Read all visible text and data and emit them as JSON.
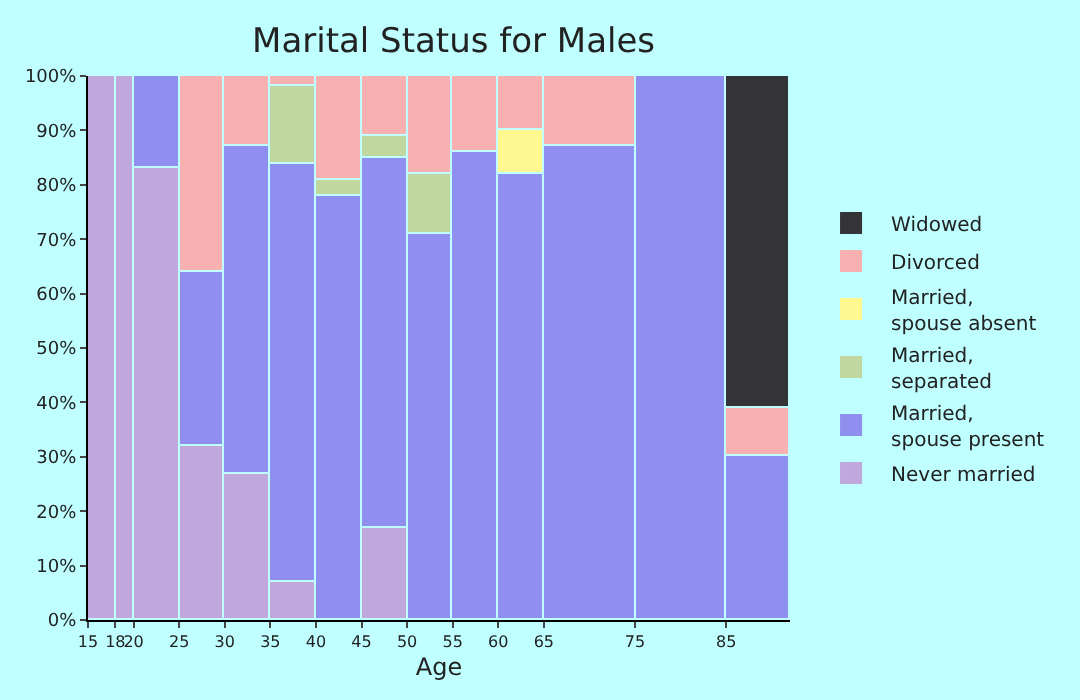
{
  "chart_data": {
    "type": "bar",
    "stacked": true,
    "title": "Marital Status for Males",
    "xlabel": "Age",
    "x": [
      16.5,
      19,
      22.5,
      27.5,
      32.5,
      37.5,
      42.5,
      47.5,
      52.5,
      57.5,
      62.5,
      70,
      80,
      88.5
    ],
    "xlim": [
      15,
      92
    ],
    "xticks": [
      15,
      18,
      20,
      25,
      30,
      35,
      40,
      45,
      50,
      55,
      60,
      65,
      75,
      85
    ],
    "ylim": [
      0,
      100
    ],
    "yticks": [
      {
        "value": 0,
        "label": "0%"
      },
      {
        "value": 10,
        "label": "10%"
      },
      {
        "value": 20,
        "label": "20%"
      },
      {
        "value": 30,
        "label": "30%"
      },
      {
        "value": 40,
        "label": "40%"
      },
      {
        "value": 50,
        "label": "50%"
      },
      {
        "value": 60,
        "label": "60%"
      },
      {
        "value": 70,
        "label": "70%"
      },
      {
        "value": 80,
        "label": "80%"
      },
      {
        "value": 90,
        "label": "90%"
      },
      {
        "value": 100,
        "label": "100%"
      }
    ],
    "legend": "right",
    "series": [
      {
        "name": "Never married",
        "color": "#c0a8dc",
        "values": [
          100,
          100,
          83,
          32,
          27,
          7,
          null,
          17,
          null,
          null,
          null,
          null,
          null,
          null
        ]
      },
      {
        "name": "Married, spouse present",
        "color": "#8f8ff0",
        "values": [
          null,
          null,
          17,
          32,
          60,
          77,
          78,
          68,
          71,
          86,
          82,
          87,
          100,
          30
        ]
      },
      {
        "name": "Married, separated",
        "color": "#c0d8a0",
        "values": [
          null,
          null,
          null,
          null,
          null,
          14,
          3,
          4,
          11,
          null,
          null,
          null,
          null,
          null
        ]
      },
      {
        "name": "Married, spouse absent",
        "color": "#fff890",
        "values": [
          null,
          null,
          null,
          null,
          null,
          null,
          null,
          null,
          null,
          null,
          8,
          null,
          null,
          null
        ]
      },
      {
        "name": "Divorced",
        "color": "#f8b0b0",
        "values": [
          null,
          null,
          null,
          36,
          13,
          2,
          19,
          11,
          18,
          14,
          10,
          13,
          null,
          9
        ]
      },
      {
        "name": "Widowed",
        "color": "#333338",
        "values": [
          null,
          null,
          null,
          null,
          null,
          null,
          null,
          null,
          null,
          null,
          null,
          null,
          null,
          61
        ]
      }
    ]
  }
}
